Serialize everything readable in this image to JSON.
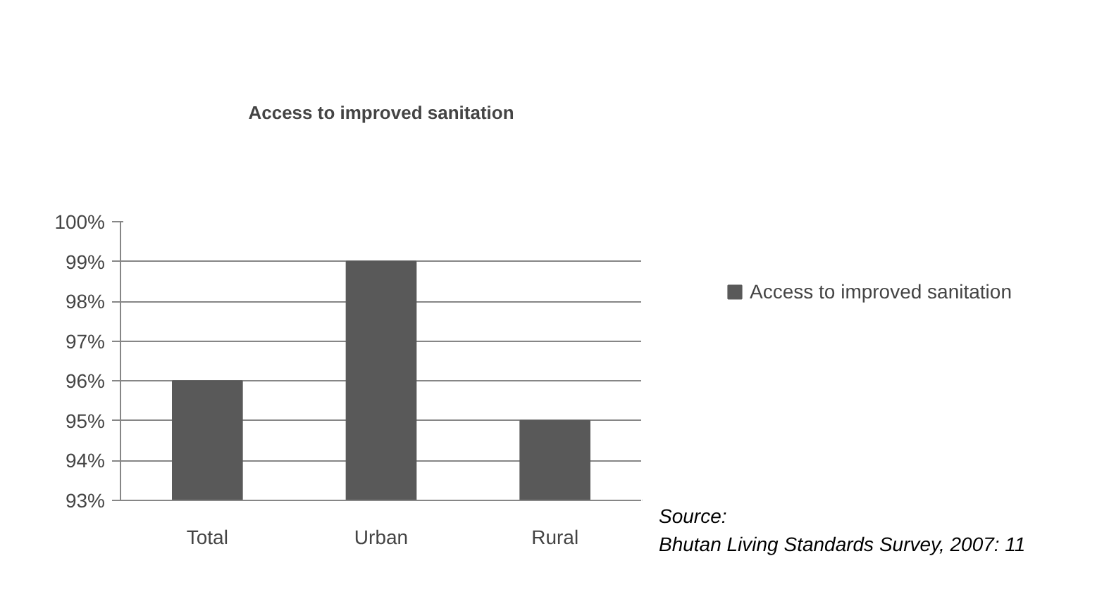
{
  "chart_data": {
    "type": "bar",
    "title": "Access to improved sanitation",
    "categories": [
      "Total",
      "Urban",
      "Rural"
    ],
    "series": [
      {
        "name": "Access to improved sanitation",
        "color": "#595959",
        "values": [
          96,
          99,
          95
        ]
      }
    ],
    "ylim": [
      93,
      100
    ],
    "yticks": [
      {
        "value": 93,
        "label": "93%"
      },
      {
        "value": 94,
        "label": "94%"
      },
      {
        "value": 95,
        "label": "95%"
      },
      {
        "value": 96,
        "label": "96%"
      },
      {
        "value": 97,
        "label": "97%"
      },
      {
        "value": 98,
        "label": "98%"
      },
      {
        "value": 99,
        "label": "99%"
      },
      {
        "value": 100,
        "label": "100%"
      }
    ],
    "grid": "y",
    "legend": "right",
    "annotations": [
      "Source:",
      "Bhutan Living Standards Survey, 2007: 11"
    ]
  }
}
